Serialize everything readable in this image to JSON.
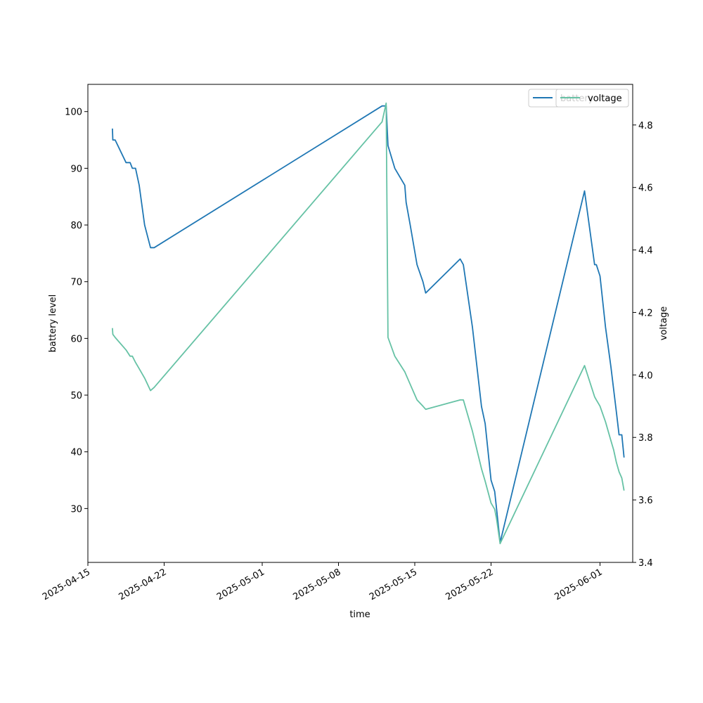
{
  "chart_data": {
    "type": "line",
    "title": "",
    "xlabel": "time",
    "ylabel": "battery level",
    "y2label": "voltage",
    "xlim": [
      "2025-04-15",
      "2025-06-04"
    ],
    "ylim": [
      20.5,
      104.8
    ],
    "y2lim": [
      3.4,
      4.93
    ],
    "x_ticks": [
      "2025-04-15",
      "2025-04-22",
      "2025-05-01",
      "2025-05-08",
      "2025-05-15",
      "2025-05-22",
      "2025-06-01"
    ],
    "y_ticks": [
      30,
      40,
      50,
      60,
      70,
      80,
      90,
      100
    ],
    "y2_ticks": [
      3.4,
      3.6,
      3.8,
      4.0,
      4.2,
      4.4,
      4.6,
      4.8
    ],
    "legend_placement": "top-right",
    "grid": false,
    "colors": {
      "battery": "#1f77b4",
      "voltage": "#66c2a5"
    },
    "series": [
      {
        "name": "battery",
        "axis": "left",
        "x": [
          "2025-04-17 06:00",
          "2025-04-17 07:00",
          "2025-04-17 12:00",
          "2025-04-18 12:00",
          "2025-04-18 21:00",
          "2025-04-19 02:00",
          "2025-04-19 09:00",
          "2025-04-19 17:00",
          "2025-04-20 05:00",
          "2025-04-20 18:00",
          "2025-04-21 02:00",
          "2025-05-12 00:00",
          "2025-05-12 09:00",
          "2025-05-12 13:00",
          "2025-05-13 04:00",
          "2025-05-14 02:00",
          "2025-05-14 05:00",
          "2025-05-14 14:00",
          "2025-05-15 05:00",
          "2025-05-15 18:00",
          "2025-05-16 00:00",
          "2025-05-19 04:00",
          "2025-05-19 11:00",
          "2025-05-20 07:00",
          "2025-05-21 03:00",
          "2025-05-21 11:00",
          "2025-05-22 00:00",
          "2025-05-22 08:00",
          "2025-05-22 12:00",
          "2025-05-22 20:00",
          "2025-05-30 14:00",
          "2025-05-31 12:00",
          "2025-05-31 16:00",
          "2025-05-31 20:00",
          "2025-06-01 00:00",
          "2025-06-01 12:00",
          "2025-06-02 00:00",
          "2025-06-02 06:00",
          "2025-06-02 12:00",
          "2025-06-02 18:00",
          "2025-06-03 00:00",
          "2025-06-03 05:00"
        ],
        "values": [
          97,
          95,
          95,
          91,
          91,
          90,
          90,
          87,
          80,
          76,
          76,
          101,
          101,
          94,
          90,
          87,
          84,
          80,
          73,
          70,
          68,
          74,
          73,
          62,
          48,
          45,
          35,
          33,
          30,
          24,
          86,
          73,
          73,
          72,
          71,
          62,
          55,
          51,
          47,
          43,
          43,
          39
        ]
      },
      {
        "name": "voltage",
        "axis": "right",
        "x": [
          "2025-04-17 06:00",
          "2025-04-17 07:00",
          "2025-04-17 12:00",
          "2025-04-18 12:00",
          "2025-04-18 21:00",
          "2025-04-19 02:00",
          "2025-04-19 09:00",
          "2025-04-19 17:00",
          "2025-04-20 05:00",
          "2025-04-20 18:00",
          "2025-04-21 02:00",
          "2025-05-12 00:00",
          "2025-05-12 09:00",
          "2025-05-12 13:00",
          "2025-05-13 04:00",
          "2025-05-14 02:00",
          "2025-05-14 05:00",
          "2025-05-14 14:00",
          "2025-05-15 05:00",
          "2025-05-15 18:00",
          "2025-05-16 00:00",
          "2025-05-19 04:00",
          "2025-05-19 11:00",
          "2025-05-20 07:00",
          "2025-05-21 03:00",
          "2025-05-21 11:00",
          "2025-05-22 00:00",
          "2025-05-22 08:00",
          "2025-05-22 12:00",
          "2025-05-22 20:00",
          "2025-05-30 14:00",
          "2025-05-31 12:00",
          "2025-05-31 16:00",
          "2025-05-31 20:00",
          "2025-06-01 00:00",
          "2025-06-01 12:00",
          "2025-06-02 00:00",
          "2025-06-02 06:00",
          "2025-06-02 12:00",
          "2025-06-02 18:00",
          "2025-06-03 00:00",
          "2025-06-03 05:00"
        ],
        "values": [
          4.15,
          4.13,
          4.12,
          4.08,
          4.06,
          4.06,
          4.04,
          4.02,
          3.99,
          3.95,
          3.96,
          4.81,
          4.87,
          4.12,
          4.06,
          4.01,
          4.0,
          3.97,
          3.92,
          3.9,
          3.89,
          3.92,
          3.92,
          3.82,
          3.7,
          3.66,
          3.59,
          3.57,
          3.54,
          3.46,
          4.03,
          3.93,
          3.92,
          3.91,
          3.9,
          3.85,
          3.79,
          3.76,
          3.72,
          3.69,
          3.67,
          3.63
        ]
      }
    ]
  }
}
